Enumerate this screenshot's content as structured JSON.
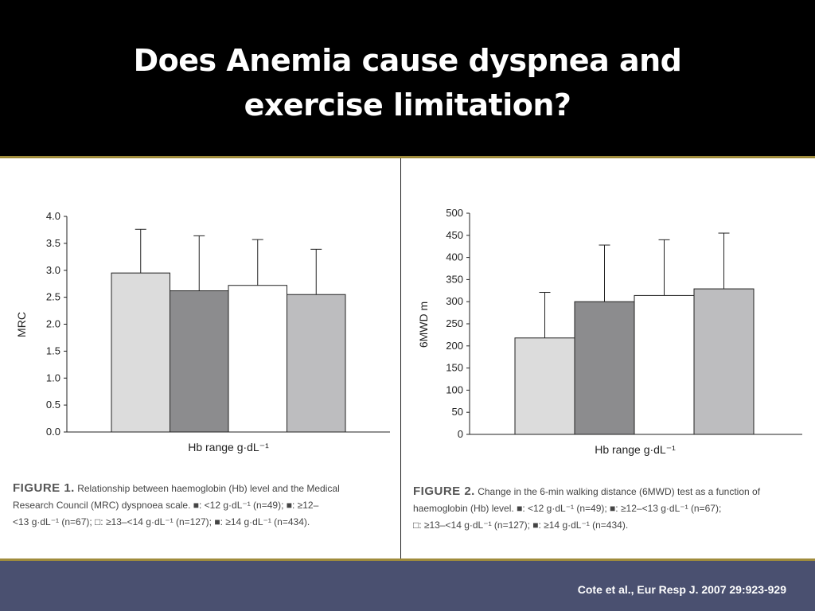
{
  "slide": {
    "title": "Does Anemia cause dyspnea and\nexercise limitation?",
    "citation": "Cote et al., Eur Resp J. 2007 29:923-929"
  },
  "colors": {
    "header_bg": "#000000",
    "accent_gold": "#a08c3c",
    "footer_bg": "#4a5070",
    "bar_lt12": "#dcdcdc",
    "bar_12_13": "#8c8c8e",
    "bar_13_14": "#ffffff",
    "bar_ge14": "#bdbdbf"
  },
  "figure1": {
    "label": "FIGURE 1.",
    "caption_lines": [
      "Relationship between haemoglobin (Hb) level and the Medical",
      "Research Council (MRC) dyspnoea scale. ■: <12 g·dL⁻¹ (n=49); ■: ≥12–",
      "<13 g·dL⁻¹ (n=67); □: ≥13–<14 g·dL⁻¹ (n=127); ■: ≥14 g·dL⁻¹ (n=434)."
    ]
  },
  "figure2": {
    "label": "FIGURE 2.",
    "caption_lines": [
      "Change in the 6-min walking distance (6MWD) test as a function of",
      "haemoglobin (Hb) level. ■: <12 g·dL⁻¹ (n=49); ■: ≥12–<13 g·dL⁻¹ (n=67);",
      "□: ≥13–<14 g·dL⁻¹ (n=127); ■: ≥14 g·dL⁻¹ (n=434)."
    ]
  },
  "chart_data": [
    {
      "type": "bar",
      "categories": [
        "<12 g·dL⁻¹ (n=49)",
        "≥12–<13 g·dL⁻¹ (n=67)",
        "≥13–<14 g·dL⁻¹ (n=127)",
        "≥14 g·dL⁻¹ (n=434)"
      ],
      "values": [
        2.95,
        2.62,
        2.72,
        2.55
      ],
      "error_upper": [
        3.76,
        3.64,
        3.57,
        3.39
      ],
      "bar_colors": [
        "#dcdcdc",
        "#8c8c8e",
        "#ffffff",
        "#bdbdbf"
      ],
      "xlabel": "Hb range g·dL⁻¹",
      "ylabel": "MRC",
      "ylim": [
        0,
        4.0
      ],
      "yticks": [
        "4.0",
        "3.5",
        "3.0",
        "2.5",
        "2.0",
        "1.5",
        "1.0",
        "0.5",
        "0.0"
      ],
      "grid": false
    },
    {
      "type": "bar",
      "categories": [
        "<12 g·dL⁻¹ (n=49)",
        "≥12–<13 g·dL⁻¹ (n=67)",
        "≥13–<14 g·dL⁻¹ (n=127)",
        "≥14 g·dL⁻¹ (n=434)"
      ],
      "values": [
        218,
        300,
        314,
        329
      ],
      "error_upper": [
        321,
        428,
        440,
        455
      ],
      "bar_colors": [
        "#dcdcdc",
        "#8c8c8e",
        "#ffffff",
        "#bdbdbf"
      ],
      "xlabel": "Hb range g·dL⁻¹",
      "ylabel": "6MWD m",
      "ylim": [
        0,
        500
      ],
      "yticks": [
        "500",
        "450",
        "400",
        "350",
        "300",
        "250",
        "200",
        "150",
        "100",
        "50",
        "0"
      ],
      "grid": false
    }
  ]
}
